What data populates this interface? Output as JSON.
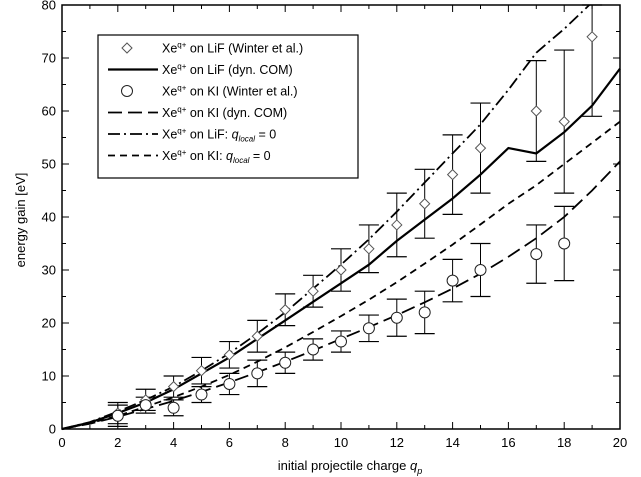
{
  "chart_data": {
    "type": "line",
    "xlabel": "initial projectile charge",
    "xlabel_symbol": "q",
    "xlabel_subscript": "p",
    "ylabel": "energy gain [eV]",
    "xlim": [
      0,
      20
    ],
    "ylim": [
      0,
      80
    ],
    "xticks": [
      0,
      2,
      4,
      6,
      8,
      10,
      12,
      14,
      16,
      18,
      20
    ],
    "yticks": [
      0,
      10,
      20,
      30,
      40,
      50,
      60,
      70,
      80
    ],
    "legend_position": "top-left",
    "series": [
      {
        "name": "Xe^q+ on LiF (Winter et al.)",
        "legend": {
          "base": "Xe",
          "sup": "q+",
          "rest": " on LiF (Winter et al.)"
        },
        "kind": "points",
        "marker": "diamond",
        "x": [
          2,
          3,
          4,
          5,
          6,
          7,
          8,
          9,
          10,
          11,
          12,
          13,
          14,
          15,
          17,
          18,
          19
        ],
        "y": [
          3,
          5.5,
          8,
          11,
          14,
          17.5,
          22.5,
          26,
          30,
          34,
          38.5,
          42.5,
          48,
          53,
          60,
          58,
          74
        ],
        "err": [
          2,
          2,
          2,
          2.5,
          2.5,
          3,
          3,
          3,
          4,
          4.5,
          6,
          6.5,
          7.5,
          8.5,
          9.5,
          13.5,
          15
        ]
      },
      {
        "name": "Xe^q+ on LiF (dyn. COM)",
        "legend": {
          "base": "Xe",
          "sup": "q+",
          "rest": " on LiF (dyn. COM)"
        },
        "kind": "line",
        "dash": "solid",
        "x": [
          0,
          1,
          2,
          3,
          4,
          5,
          6,
          7,
          8,
          9,
          10,
          11,
          12,
          13,
          14,
          15,
          16,
          17,
          18,
          19,
          20
        ],
        "y": [
          0,
          1.2,
          3,
          5,
          7.5,
          10.5,
          13.5,
          17,
          20.5,
          24,
          27.5,
          31,
          35.5,
          39.5,
          43.5,
          48,
          53,
          52,
          56,
          61,
          68
        ]
      },
      {
        "name": "Xe^q+ on KI (Winter et al.)",
        "legend": {
          "base": "Xe",
          "sup": "q+",
          "rest": " on KI (Winter et al.)"
        },
        "kind": "points",
        "marker": "circle",
        "x": [
          2,
          3,
          4,
          5,
          6,
          7,
          8,
          9,
          10,
          11,
          12,
          13,
          14,
          15,
          17,
          18
        ],
        "y": [
          2.5,
          4.5,
          4,
          6.5,
          8.5,
          10.5,
          12.5,
          15,
          16.5,
          19,
          21,
          22,
          28,
          30,
          33,
          35
        ],
        "err": [
          2,
          1.5,
          1.5,
          1.5,
          2,
          2.5,
          2,
          2,
          2,
          2.5,
          3.5,
          4,
          4,
          5,
          5.5,
          7
        ]
      },
      {
        "name": "Xe^q+ on KI (dyn. COM)",
        "legend": {
          "base": "Xe",
          "sup": "q+",
          "rest": " on KI (dyn. COM)"
        },
        "kind": "line",
        "dash": "long",
        "x": [
          0,
          1,
          2,
          3,
          4,
          5,
          6,
          7,
          8,
          9,
          10,
          11,
          12,
          13,
          14,
          15,
          16,
          17,
          18,
          19,
          20
        ],
        "y": [
          0,
          1,
          2.3,
          3.8,
          5.3,
          7,
          8.8,
          10.7,
          12.7,
          14.8,
          17,
          19.2,
          21.5,
          23.9,
          26.5,
          29.3,
          32.5,
          36,
          40,
          45,
          50.5
        ]
      },
      {
        "name": "Xe^q+ on LiF: q_local = 0",
        "legend": {
          "base": "Xe",
          "sup": "q+",
          "rest": " on LiF: ",
          "sym": "q",
          "sub": "local",
          "tail": " = 0"
        },
        "kind": "line",
        "dash": "dashdot",
        "x": [
          0,
          1,
          2,
          3,
          4,
          5,
          6,
          7,
          8,
          9,
          10,
          11,
          12,
          13,
          14,
          15,
          16,
          17,
          18,
          19
        ],
        "y": [
          0,
          1.3,
          3.3,
          5.5,
          8,
          11,
          14.3,
          18,
          22,
          26.5,
          31,
          35.8,
          41,
          46.5,
          52,
          57.5,
          64,
          71,
          75.5,
          80.5
        ]
      },
      {
        "name": "Xe^q+ on KI: q_local = 0",
        "legend": {
          "base": "Xe",
          "sup": "q+",
          "rest": " on KI: ",
          "sym": "q",
          "sub": "local",
          "tail": " = 0"
        },
        "kind": "line",
        "dash": "short",
        "x": [
          0,
          1,
          2,
          3,
          4,
          5,
          6,
          7,
          8,
          9,
          10,
          11,
          12,
          13,
          14,
          15,
          16,
          17,
          18,
          19,
          20
        ],
        "y": [
          0,
          1.1,
          2.5,
          4.2,
          6,
          8,
          10.2,
          12.7,
          15.4,
          18.3,
          21.3,
          24.4,
          27.7,
          31.2,
          34.8,
          38.6,
          42.5,
          46,
          50,
          54,
          58
        ]
      }
    ]
  }
}
